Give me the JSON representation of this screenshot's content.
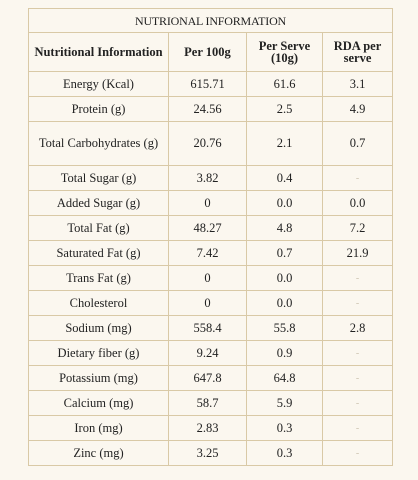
{
  "title": "NUTRIONAL INFORMATION",
  "columns": [
    "Nutritional Information",
    "Per 100g",
    "Per Serve (10g)",
    "RDA per serve"
  ],
  "rows": [
    [
      "Energy (Kcal)",
      "615.71",
      "61.6",
      "3.1"
    ],
    [
      "Protein (g)",
      "24.56",
      "2.5",
      "4.9"
    ],
    [
      "Total Carbohydrates (g)",
      "20.76",
      "2.1",
      "0.7"
    ],
    [
      "Total Sugar (g)",
      "3.82",
      "0.4",
      "-"
    ],
    [
      "Added Sugar (g)",
      "0",
      "0.0",
      "0.0"
    ],
    [
      "Total Fat (g)",
      "48.27",
      "4.8",
      "7.2"
    ],
    [
      "Saturated Fat (g)",
      "7.42",
      "0.7",
      "21.9"
    ],
    [
      "Trans Fat (g)",
      "0",
      "0.0",
      "-"
    ],
    [
      "Cholesterol",
      "0",
      "0.0",
      "-"
    ],
    [
      "Sodium (mg)",
      "558.4",
      "55.8",
      "2.8"
    ],
    [
      "Dietary fiber (g)",
      "9.24",
      "0.9",
      "-"
    ],
    [
      "Potassium (mg)",
      "647.8",
      "64.8",
      "-"
    ],
    [
      "Calcium (mg)",
      "58.7",
      "5.9",
      "-"
    ],
    [
      "Iron (mg)",
      "2.83",
      "0.3",
      "-"
    ],
    [
      "Zinc (mg)",
      "3.25",
      "0.3",
      "-"
    ]
  ]
}
